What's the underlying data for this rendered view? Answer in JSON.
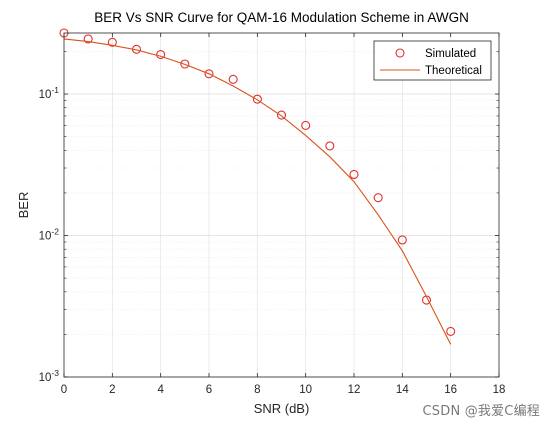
{
  "chart_data": {
    "type": "line",
    "title": "BER Vs SNR Curve for QAM-16 Modulation Scheme in AWGN",
    "xlabel": "SNR (dB)",
    "ylabel": "BER",
    "xlim": [
      0,
      18
    ],
    "ylim": [
      0.001,
      0.27
    ],
    "yscale": "log",
    "grid": true,
    "legend_position": "top-right",
    "x_ticks": [
      "0",
      "2",
      "4",
      "6",
      "8",
      "10",
      "12",
      "14",
      "16",
      "18"
    ],
    "y_ticks": [
      {
        "base": "10",
        "exp": "-1",
        "value": 0.1
      },
      {
        "base": "10",
        "exp": "-2",
        "value": 0.01
      },
      {
        "base": "10",
        "exp": "-3",
        "value": 0.001
      }
    ],
    "series": [
      {
        "name": "Simulated",
        "style": "markers",
        "color": "#e03030",
        "x": [
          0,
          1,
          2,
          3,
          4,
          5,
          6,
          7,
          8,
          9,
          10,
          11,
          12,
          13,
          14,
          15,
          16
        ],
        "y": [
          0.27,
          0.245,
          0.232,
          0.207,
          0.19,
          0.163,
          0.139,
          0.127,
          0.092,
          0.071,
          0.06,
          0.043,
          0.027,
          0.0185,
          0.0093,
          0.0035,
          0.0021
        ]
      },
      {
        "name": "Theoretical",
        "style": "line",
        "color": "#d95319",
        "x": [
          0,
          1,
          2,
          3,
          4,
          5,
          6,
          7,
          8,
          9,
          10,
          11,
          12,
          13,
          14,
          15,
          16
        ],
        "y": [
          0.245,
          0.235,
          0.221,
          0.205,
          0.185,
          0.162,
          0.139,
          0.114,
          0.091,
          0.07,
          0.051,
          0.036,
          0.024,
          0.014,
          0.0078,
          0.0037,
          0.0017
        ]
      }
    ]
  },
  "watermark": "CSDN @我爱C编程"
}
